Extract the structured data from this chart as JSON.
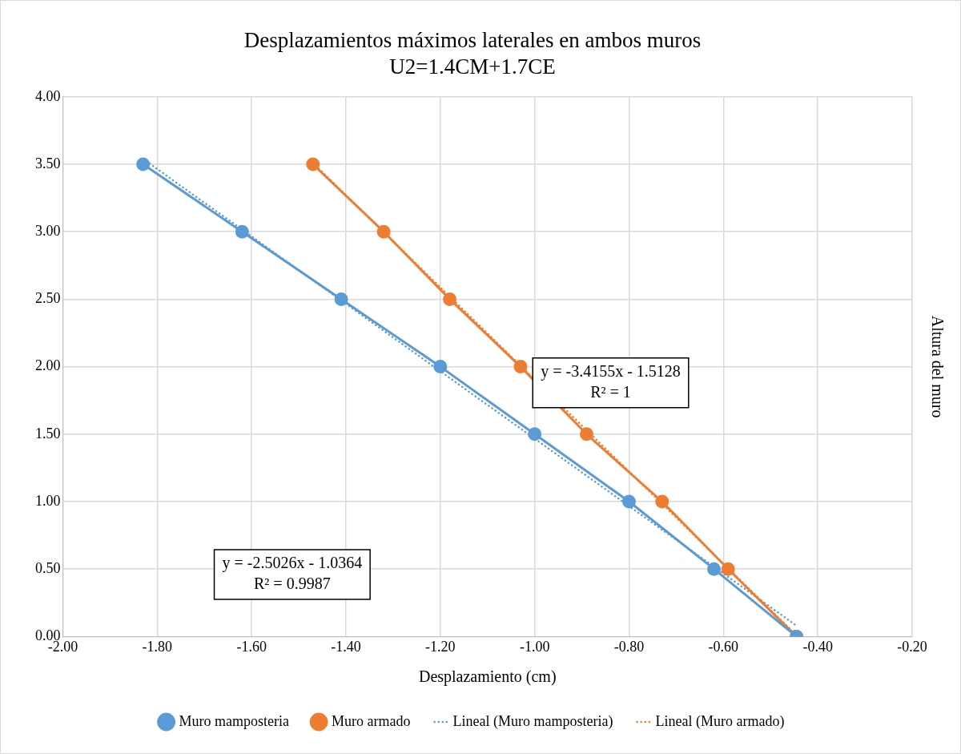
{
  "chart_data": {
    "type": "line",
    "title": "Desplazamientos máximos laterales en ambos muros",
    "subtitle": "U2=1.4CM+1.7CE",
    "xlabel": "Desplazamiento (cm)",
    "ylabel": "Altura del muro",
    "series": [
      {
        "name": "Muro mamposteria",
        "color": "#5b9bd5",
        "marker": "circle",
        "line_style": "solid",
        "x": [
          -1.83,
          -1.62,
          -1.41,
          -1.2,
          -1.0,
          -0.8,
          -0.62,
          -0.445
        ],
        "values": [
          3.5,
          3.0,
          2.5,
          2.0,
          1.5,
          1.0,
          0.5,
          0.0
        ]
      },
      {
        "name": "Muro armado",
        "color": "#ed7d31",
        "marker": "circle",
        "line_style": "solid",
        "x": [
          -1.47,
          -1.32,
          -1.18,
          -1.03,
          -0.89,
          -0.73,
          -0.59,
          -0.445
        ],
        "values": [
          3.5,
          3.0,
          2.5,
          2.0,
          1.5,
          1.0,
          0.5,
          0.0
        ]
      },
      {
        "name": "Lineal (Muro mamposteria)",
        "color": "#5b9bd5",
        "marker": "none",
        "line_style": "dotted",
        "x": [
          -1.83,
          -0.445
        ],
        "values": [
          3.54,
          0.08
        ]
      },
      {
        "name": "Lineal (Muro armado)",
        "color": "#ed7d31",
        "marker": "none",
        "line_style": "dotted",
        "x": [
          -1.47,
          -0.445
        ],
        "values": [
          3.51,
          0.01
        ]
      }
    ],
    "xlim": [
      -2.0,
      -0.2
    ],
    "xticks": [
      {
        "value": -2.0,
        "label": "-2.00"
      },
      {
        "value": -1.8,
        "label": "-1.80"
      },
      {
        "value": -1.6,
        "label": "-1.60"
      },
      {
        "value": -1.4,
        "label": "-1.40"
      },
      {
        "value": -1.2,
        "label": "-1.20"
      },
      {
        "value": -1.0,
        "label": "-1.00"
      },
      {
        "value": -0.8,
        "label": "-0.80"
      },
      {
        "value": -0.6,
        "label": "-0.60"
      },
      {
        "value": -0.4,
        "label": "-0.40"
      },
      {
        "value": -0.2,
        "label": "-0.20"
      }
    ],
    "ylim": [
      0.0,
      4.0
    ],
    "yticks": [
      {
        "value": 0.0,
        "label": "0.00"
      },
      {
        "value": 0.5,
        "label": "0.50"
      },
      {
        "value": 1.0,
        "label": "1.00"
      },
      {
        "value": 1.5,
        "label": "1.50"
      },
      {
        "value": 2.0,
        "label": "2.00"
      },
      {
        "value": 2.5,
        "label": "2.50"
      },
      {
        "value": 3.0,
        "label": "3.00"
      },
      {
        "value": 3.5,
        "label": "3.50"
      },
      {
        "value": 4.0,
        "label": "4.00"
      }
    ],
    "annotations": [
      "y = -2.5026x - 1.0364\nR² = 0.9987",
      "y = -3.4155x - 1.5128\nR² = 1"
    ],
    "grid": true,
    "legend": "bottom"
  }
}
